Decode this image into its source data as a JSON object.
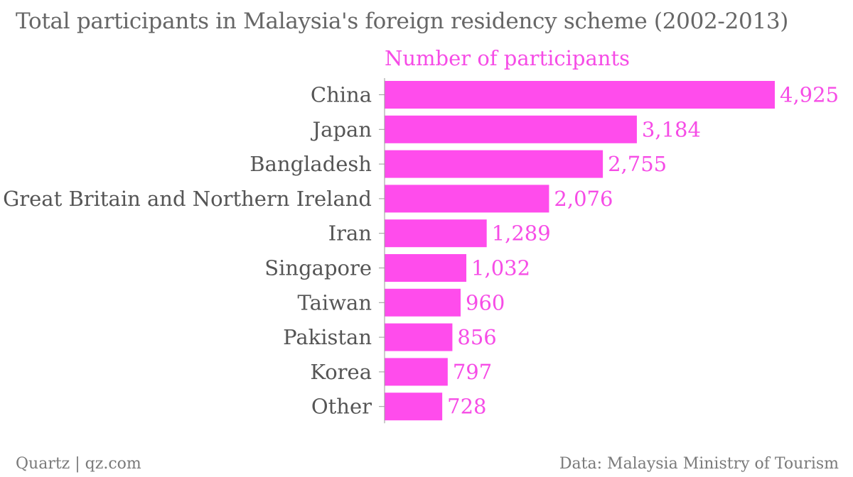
{
  "title": "Total participants in Malaysia's foreign residency scheme (2002-2013)",
  "footer": {
    "source_left": "Quartz | qz.com",
    "source_right": "Data: Malaysia Ministry of Tourism"
  },
  "colors": {
    "bar": "#ff4cec",
    "value_text": "#f64ce6",
    "category_text": "#555555",
    "axis": "#9a9a9a"
  },
  "chart_data": {
    "type": "bar",
    "orientation": "horizontal",
    "title": "Total participants in Malaysia's foreign residency scheme (2002-2013)",
    "xlabel": "",
    "ylabel": "",
    "categories": [
      "China",
      "Japan",
      "Bangladesh",
      "Great Britain and Northern Ireland",
      "Iran",
      "Singapore",
      "Taiwan",
      "Pakistan",
      "Korea",
      "Other"
    ],
    "series": [
      {
        "name": "Number of participants",
        "values": [
          4925,
          3184,
          2755,
          2076,
          1289,
          1032,
          960,
          856,
          797,
          728
        ],
        "labels": [
          "4,925",
          "3,184",
          "2,755",
          "2,076",
          "1,289",
          "1,032",
          "960",
          "856",
          "797",
          "728"
        ]
      }
    ],
    "xlim": [
      0,
      4925
    ],
    "grid": false,
    "legend": "top"
  }
}
